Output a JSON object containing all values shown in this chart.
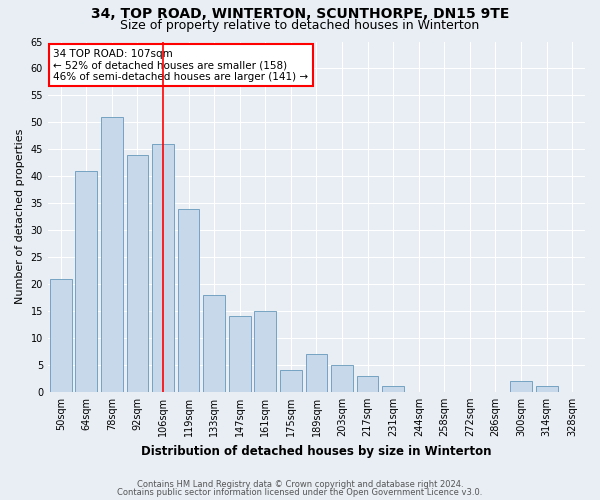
{
  "title1": "34, TOP ROAD, WINTERTON, SCUNTHORPE, DN15 9TE",
  "title2": "Size of property relative to detached houses in Winterton",
  "xlabel": "Distribution of detached houses by size in Winterton",
  "ylabel": "Number of detached properties",
  "categories": [
    "50sqm",
    "64sqm",
    "78sqm",
    "92sqm",
    "106sqm",
    "119sqm",
    "133sqm",
    "147sqm",
    "161sqm",
    "175sqm",
    "189sqm",
    "203sqm",
    "217sqm",
    "231sqm",
    "244sqm",
    "258sqm",
    "272sqm",
    "286sqm",
    "300sqm",
    "314sqm",
    "328sqm"
  ],
  "values": [
    21,
    41,
    51,
    44,
    46,
    34,
    18,
    14,
    15,
    4,
    7,
    5,
    3,
    1,
    0,
    0,
    0,
    0,
    2,
    1,
    0
  ],
  "bar_color": "#c8d8eb",
  "bar_edge_color": "#6699bb",
  "vline_x_index": 4,
  "vline_color": "red",
  "annotation_text": "34 TOP ROAD: 107sqm\n← 52% of detached houses are smaller (158)\n46% of semi-detached houses are larger (141) →",
  "annotation_box_facecolor": "white",
  "annotation_box_edgecolor": "red",
  "ylim": [
    0,
    65
  ],
  "yticks": [
    0,
    5,
    10,
    15,
    20,
    25,
    30,
    35,
    40,
    45,
    50,
    55,
    60,
    65
  ],
  "footer1": "Contains HM Land Registry data © Crown copyright and database right 2024.",
  "footer2": "Contains public sector information licensed under the Open Government Licence v3.0.",
  "bg_color": "#e8eef4",
  "plot_bg_color": "#e8eef4",
  "grid_color": "#ffffff",
  "title1_fontsize": 10,
  "title2_fontsize": 9,
  "tick_fontsize": 7,
  "ylabel_fontsize": 8,
  "xlabel_fontsize": 8.5,
  "annotation_fontsize": 7.5,
  "footer_fontsize": 6
}
